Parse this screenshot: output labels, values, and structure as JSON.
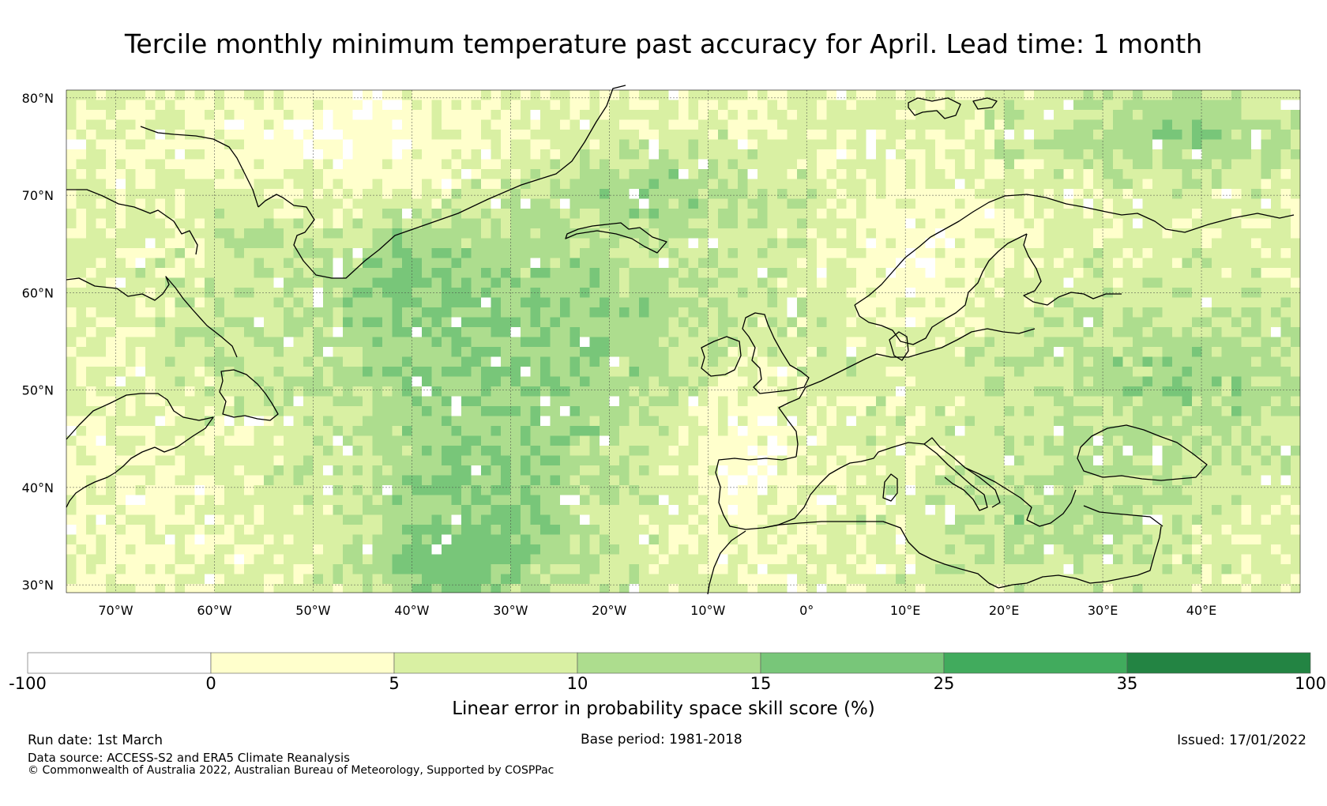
{
  "title": "Tercile monthly minimum temperature past accuracy for April. Lead time: 1 month",
  "map": {
    "lat_labels": [
      "80°N",
      "70°N",
      "60°N",
      "50°N",
      "40°N",
      "30°N"
    ],
    "lat_values": [
      80,
      70,
      60,
      50,
      40,
      30
    ],
    "lon_labels": [
      "70°W",
      "60°W",
      "50°W",
      "40°W",
      "30°W",
      "20°W",
      "10°W",
      "0°",
      "10°E",
      "20°E",
      "30°E",
      "40°E"
    ],
    "lon_values": [
      -70,
      -60,
      -50,
      -40,
      -30,
      -20,
      -10,
      0,
      10,
      20,
      30,
      40
    ],
    "lon_range": [
      -75,
      50
    ],
    "lat_range": [
      29.2,
      80.8
    ],
    "coast_color": "#000000",
    "grid_color": "#444444"
  },
  "colorbar": {
    "bounds": [
      "-100",
      "0",
      "5",
      "10",
      "15",
      "25",
      "35",
      "100"
    ],
    "colors": [
      "#ffffff",
      "#ffffcc",
      "#d9f0a3",
      "#addd8e",
      "#78c679",
      "#41ab5d",
      "#238443"
    ],
    "label": "Linear error in probability space skill score (%)"
  },
  "footer": {
    "run_date": "Run date: 1st March",
    "base_period": "Base period: 1981-2018",
    "issued": "Issued: 17/01/2022",
    "data_source": "Data source: ACCESS-S2 and ERA5 Climate Reanalysis",
    "copyright": "© Commonwealth of Australia 2022, Australian Bureau of Meteorology, Supported by COSPPac"
  }
}
